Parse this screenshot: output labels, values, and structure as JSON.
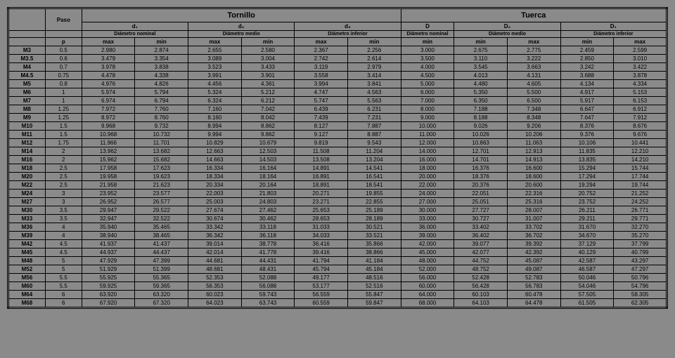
{
  "headers": {
    "paso": "Paso",
    "tornillo": "Tornillo",
    "tuerca": "Tuerca",
    "d1": "d₁",
    "d2": "d₂",
    "d3": "d₃",
    "D": "D",
    "D2": "D₂",
    "D1": "D₁",
    "diam_nominal": "Diámetro nominal",
    "diam_medio": "Diámetro medio",
    "diam_inferior": "Diámetro inferior",
    "p": "p",
    "max": "max",
    "min": "min"
  },
  "rows": [
    {
      "l": "M3",
      "p": "0.5",
      "c": [
        "2.980",
        "2.874",
        "2.655",
        "2.580",
        "2.367",
        "2.256",
        "3.000",
        "2.675",
        "2.775",
        "2.459",
        "2.599"
      ]
    },
    {
      "l": "M3.5",
      "p": "0.6",
      "c": [
        "3.479",
        "3.354",
        "3.089",
        "3.004",
        "2.742",
        "2.614",
        "3.500",
        "3.110",
        "3.222",
        "2.850",
        "3.010"
      ]
    },
    {
      "l": "M4",
      "p": "0.7",
      "c": [
        "3.978",
        "3.838",
        "3.523",
        "3.433",
        "3.119",
        "2.979",
        "4.000",
        "3.545",
        "3.663",
        "3.242",
        "3.422"
      ]
    },
    {
      "l": "M4.5",
      "p": "0.75",
      "c": [
        "4.478",
        "4.338",
        "3.991",
        "3.901",
        "3.558",
        "3.414",
        "4.500",
        "4.013",
        "4.131",
        "3.688",
        "3.878"
      ]
    },
    {
      "l": "M5",
      "p": "0.8",
      "c": [
        "4.976",
        "4.826",
        "4.456",
        "4.361",
        "3.994",
        "3.841",
        "5.000",
        "4.480",
        "4.605",
        "4.134",
        "4.334"
      ]
    },
    {
      "l": "M6",
      "p": "1",
      "c": [
        "5.974",
        "5.794",
        "5.324",
        "5.212",
        "4.747",
        "4.563",
        "6.000",
        "5.350",
        "5.500",
        "4.917",
        "5.153"
      ]
    },
    {
      "l": "M7",
      "p": "1",
      "c": [
        "6.974",
        "6.794",
        "6.324",
        "6.212",
        "5.747",
        "5.563",
        "7.000",
        "6.350",
        "6.500",
        "5.917",
        "6.153"
      ]
    },
    {
      "l": "M8",
      "p": "1.25",
      "c": [
        "7.972",
        "7.760",
        "7.160",
        "7.042",
        "6.439",
        "6.231",
        "8.000",
        "7.188",
        "7.348",
        "6.647",
        "6.912"
      ]
    },
    {
      "l": "M9",
      "p": "1.25",
      "c": [
        "8.972",
        "8.760",
        "8.160",
        "8.042",
        "7.439",
        "7.231",
        "9.000",
        "8.188",
        "8.348",
        "7.647",
        "7.912"
      ]
    },
    {
      "l": "M10",
      "p": "1.5",
      "c": [
        "9.968",
        "9.732",
        "8.994",
        "8.862",
        "8.127",
        "7.887",
        "10.000",
        "9.026",
        "9.206",
        "8.376",
        "8.676"
      ]
    },
    {
      "l": "M11",
      "p": "1.5",
      "c": [
        "10.968",
        "10.732",
        "9.994",
        "9.862",
        "9.127",
        "8.887",
        "11.000",
        "10.026",
        "10.206",
        "9.376",
        "9.676"
      ]
    },
    {
      "l": "M12",
      "p": "1.75",
      "c": [
        "11.966",
        "11.701",
        "10.829",
        "10.679",
        "9.819",
        "9.543",
        "12.000",
        "10.863",
        "11.063",
        "10.106",
        "10.441"
      ]
    },
    {
      "l": "M14",
      "p": "2",
      "c": [
        "13.962",
        "13.682",
        "12.663",
        "12.503",
        "11.508",
        "11.204",
        "14.000",
        "12.701",
        "12.913",
        "11.835",
        "12.210"
      ]
    },
    {
      "l": "M16",
      "p": "2",
      "c": [
        "15.962",
        "15.682",
        "14.663",
        "14.503",
        "13.508",
        "13.204",
        "16.000",
        "14.701",
        "14.913",
        "13.835",
        "14.210"
      ]
    },
    {
      "l": "M18",
      "p": "2.5",
      "c": [
        "17.958",
        "17.623",
        "16.334",
        "16.164",
        "14.891",
        "14.541",
        "18.000",
        "16.376",
        "16.600",
        "15.294",
        "15.744"
      ]
    },
    {
      "l": "M20",
      "p": "2.5",
      "c": [
        "19.958",
        "19.623",
        "18.334",
        "18.164",
        "16.891",
        "16.541",
        "20.000",
        "18.376",
        "18.600",
        "17.294",
        "17.744"
      ]
    },
    {
      "l": "M22",
      "p": "2.5",
      "c": [
        "21.958",
        "21.623",
        "20.334",
        "20.164",
        "18.891",
        "18.541",
        "22.000",
        "20.376",
        "20.600",
        "19.294",
        "19.744"
      ]
    },
    {
      "l": "M24",
      "p": "3",
      "c": [
        "23.952",
        "23.577",
        "22.003",
        "21.803",
        "20.271",
        "19.855",
        "24.000",
        "22.051",
        "22.316",
        "20.752",
        "21.252"
      ]
    },
    {
      "l": "M27",
      "p": "3",
      "c": [
        "26.952",
        "26.577",
        "25.003",
        "24.803",
        "23.271",
        "22.855",
        "27.000",
        "25.051",
        "25.316",
        "23.752",
        "24.252"
      ]
    },
    {
      "l": "M30",
      "p": "3.5",
      "c": [
        "29.947",
        "29.522",
        "27.674",
        "27.462",
        "25.653",
        "25.189",
        "30.000",
        "27.727",
        "28.007",
        "26.211",
        "26.771"
      ]
    },
    {
      "l": "M33",
      "p": "3.5",
      "c": [
        "32.947",
        "32.522",
        "30.674",
        "30.462",
        "28.653",
        "28.189",
        "33.000",
        "30.727",
        "31.007",
        "29.211",
        "29.771"
      ]
    },
    {
      "l": "M36",
      "p": "4",
      "c": [
        "35.940",
        "35.465",
        "33.342",
        "33.118",
        "31.033",
        "30.521",
        "36.000",
        "33.402",
        "33.702",
        "31.670",
        "32.270"
      ]
    },
    {
      "l": "M39",
      "p": "4",
      "c": [
        "38.940",
        "38.465",
        "36.342",
        "36.118",
        "34.033",
        "33.521",
        "39.000",
        "36.402",
        "36.702",
        "34.670",
        "35.270"
      ]
    },
    {
      "l": "M42",
      "p": "4.5",
      "c": [
        "41.937",
        "41.437",
        "39.014",
        "38.778",
        "36.416",
        "35.866",
        "42.000",
        "39.077",
        "39.392",
        "37.129",
        "37.799"
      ]
    },
    {
      "l": "M45",
      "p": "4.5",
      "c": [
        "44.937",
        "44.437",
        "42.014",
        "41.778",
        "39.416",
        "38.866",
        "45.000",
        "42.077",
        "42.392",
        "40.129",
        "40.799"
      ]
    },
    {
      "l": "M48",
      "p": "5",
      "c": [
        "47.929",
        "47.399",
        "44.681",
        "44.431",
        "41.794",
        "41.184",
        "48.000",
        "44.752",
        "45.087",
        "42.587",
        "43.297"
      ]
    },
    {
      "l": "M52",
      "p": "5",
      "c": [
        "51.929",
        "51.399",
        "48.681",
        "48.431",
        "45.794",
        "45.184",
        "52.000",
        "48.752",
        "49.087",
        "46.587",
        "47.297"
      ]
    },
    {
      "l": "M56",
      "p": "5.5",
      "c": [
        "55.925",
        "55.365",
        "52.353",
        "52.088",
        "49.177",
        "48.516",
        "56.000",
        "52.428",
        "52.783",
        "50.046",
        "50.796"
      ]
    },
    {
      "l": "M60",
      "p": "5.5",
      "c": [
        "59.925",
        "59.365",
        "56.353",
        "56.088",
        "53.177",
        "52.516",
        "60.000",
        "56.428",
        "56.783",
        "54.046",
        "54.796"
      ]
    },
    {
      "l": "M64",
      "p": "6",
      "c": [
        "63.920",
        "63.320",
        "60.023",
        "59.743",
        "56.559",
        "55.847",
        "64.000",
        "60.103",
        "60.478",
        "57.505",
        "58.305"
      ]
    },
    {
      "l": "M68",
      "p": "6",
      "c": [
        "67.920",
        "67.320",
        "64.023",
        "63.743",
        "60.559",
        "59.847",
        "68.000",
        "64.103",
        "64.478",
        "61.505",
        "62.305"
      ]
    }
  ]
}
